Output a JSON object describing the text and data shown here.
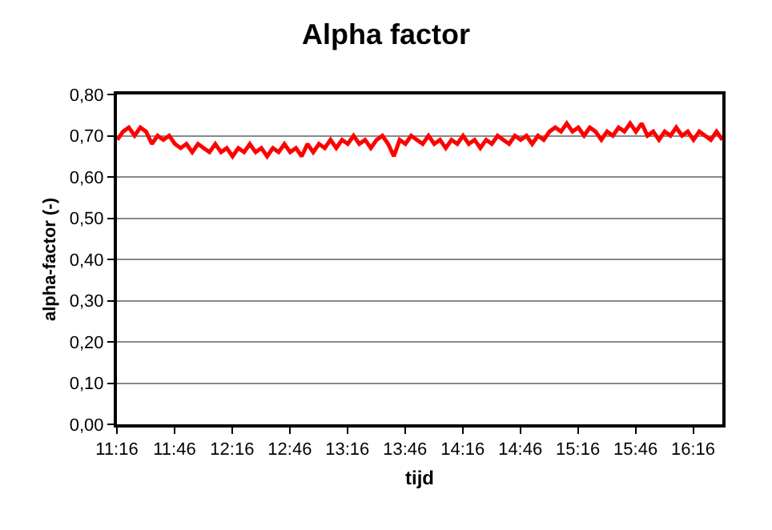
{
  "chart_data": {
    "type": "line",
    "title": "Alpha factor",
    "xlabel": "tijd",
    "ylabel": "alpha-factor (-)",
    "x": [
      11.27,
      11.32,
      11.37,
      11.42,
      11.47,
      11.52,
      11.57,
      11.62,
      11.67,
      11.72,
      11.77,
      11.82,
      11.87,
      11.92,
      11.97,
      12.02,
      12.07,
      12.12,
      12.17,
      12.22,
      12.27,
      12.32,
      12.37,
      12.42,
      12.47,
      12.52,
      12.57,
      12.62,
      12.67,
      12.72,
      12.77,
      12.82,
      12.87,
      12.92,
      12.97,
      13.02,
      13.07,
      13.12,
      13.17,
      13.22,
      13.27,
      13.32,
      13.37,
      13.42,
      13.47,
      13.52,
      13.57,
      13.62,
      13.67,
      13.72,
      13.77,
      13.82,
      13.87,
      13.92,
      13.97,
      14.02,
      14.07,
      14.12,
      14.17,
      14.22,
      14.27,
      14.32,
      14.37,
      14.42,
      14.47,
      14.52,
      14.57,
      14.62,
      14.67,
      14.72,
      14.77,
      14.82,
      14.87,
      14.92,
      14.97,
      15.02,
      15.07,
      15.12,
      15.17,
      15.22,
      15.27,
      15.32,
      15.37,
      15.42,
      15.47,
      15.52,
      15.57,
      15.62,
      15.67,
      15.72,
      15.77,
      15.82,
      15.87,
      15.92,
      15.97,
      16.02,
      16.07,
      16.12,
      16.17,
      16.22,
      16.27,
      16.32,
      16.37,
      16.42,
      16.47,
      16.52
    ],
    "series": [
      {
        "color": "#ff0000",
        "values": [
          0.69,
          0.71,
          0.72,
          0.7,
          0.72,
          0.71,
          0.68,
          0.7,
          0.69,
          0.7,
          0.68,
          0.67,
          0.68,
          0.66,
          0.68,
          0.67,
          0.66,
          0.68,
          0.66,
          0.67,
          0.65,
          0.67,
          0.66,
          0.68,
          0.66,
          0.67,
          0.65,
          0.67,
          0.66,
          0.68,
          0.66,
          0.67,
          0.65,
          0.68,
          0.66,
          0.68,
          0.67,
          0.69,
          0.67,
          0.69,
          0.68,
          0.7,
          0.68,
          0.69,
          0.67,
          0.69,
          0.7,
          0.68,
          0.65,
          0.69,
          0.68,
          0.7,
          0.69,
          0.68,
          0.7,
          0.68,
          0.69,
          0.67,
          0.69,
          0.68,
          0.7,
          0.68,
          0.69,
          0.67,
          0.69,
          0.68,
          0.7,
          0.69,
          0.68,
          0.7,
          0.69,
          0.7,
          0.68,
          0.7,
          0.69,
          0.71,
          0.72,
          0.71,
          0.73,
          0.71,
          0.72,
          0.7,
          0.72,
          0.71,
          0.69,
          0.71,
          0.7,
          0.72,
          0.71,
          0.73,
          0.71,
          0.73,
          0.7,
          0.71,
          0.69,
          0.71,
          0.7,
          0.72,
          0.7,
          0.71,
          0.69,
          0.71,
          0.7,
          0.69,
          0.71,
          0.69
        ]
      }
    ],
    "xlim": [
      11.2667,
      16.52
    ],
    "xticks": [
      {
        "value": 11.2667,
        "label": "11:16"
      },
      {
        "value": 11.7667,
        "label": "11:46"
      },
      {
        "value": 12.2667,
        "label": "12:16"
      },
      {
        "value": 12.7667,
        "label": "12:46"
      },
      {
        "value": 13.2667,
        "label": "13:16"
      },
      {
        "value": 13.7667,
        "label": "13:46"
      },
      {
        "value": 14.2667,
        "label": "14:16"
      },
      {
        "value": 14.7667,
        "label": "14:46"
      },
      {
        "value": 15.2667,
        "label": "15:16"
      },
      {
        "value": 15.7667,
        "label": "15:46"
      },
      {
        "value": 16.2667,
        "label": "16:16"
      }
    ],
    "ylim": [
      0,
      0.8
    ],
    "yticks": [
      {
        "value": 0,
        "label": "0,00"
      },
      {
        "value": 0.1,
        "label": "0,10"
      },
      {
        "value": 0.2,
        "label": "0,20"
      },
      {
        "value": 0.3,
        "label": "0,30"
      },
      {
        "value": 0.4,
        "label": "0,40"
      },
      {
        "value": 0.5,
        "label": "0,50"
      },
      {
        "value": 0.6,
        "label": "0,60"
      },
      {
        "value": 0.7,
        "label": "0,70"
      },
      {
        "value": 0.8,
        "label": "0,80"
      }
    ],
    "grid": "y",
    "marker": "none",
    "line_style": "solid"
  }
}
